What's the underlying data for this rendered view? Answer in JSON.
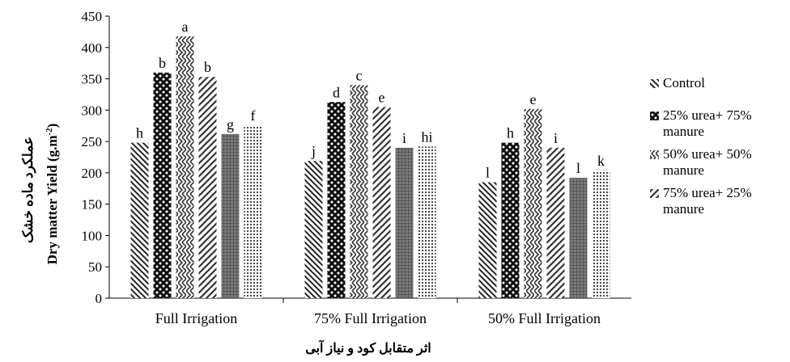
{
  "chart_data": {
    "type": "bar",
    "categories": [
      "Full Irrigation",
      "75% Full Irrigation",
      "50% Full Irrigation"
    ],
    "series": [
      {
        "name": "Control",
        "values": [
          248,
          219,
          185
        ],
        "pattern": "diag-down"
      },
      {
        "name": "",
        "values": [
          360,
          313,
          248
        ],
        "pattern": "weave-dark"
      },
      {
        "name": "",
        "values": [
          418,
          340,
          302
        ],
        "pattern": "zigzag"
      },
      {
        "name": "",
        "values": [
          353,
          305,
          240
        ],
        "pattern": "diag-up-wide"
      },
      {
        "name": "",
        "values": [
          262,
          240,
          192
        ],
        "pattern": "grid-dense"
      },
      {
        "name": "",
        "values": [
          276,
          242,
          204
        ],
        "pattern": "dots"
      }
    ],
    "significance_letters": [
      [
        "h",
        "b",
        "a",
        "b",
        "g",
        "f"
      ],
      [
        "j",
        "d",
        "c",
        "e",
        "i",
        "hi"
      ],
      [
        "l",
        "h",
        "e",
        "i",
        "l",
        "k"
      ]
    ],
    "ylim": [
      0,
      450
    ],
    "yticks": [
      0,
      50,
      100,
      150,
      200,
      250,
      300,
      350,
      400,
      450
    ],
    "ylabel_line1": "عملکرد ماده خشک",
    "ylabel_line2": "Dry matter Yield (g.m",
    "ylabel_sup": "-2",
    "ylabel_close": ")",
    "xlabel": "اثر متقابل کود و نیاز آبی",
    "legend_position": "right",
    "legend_entries": [
      {
        "lines": [
          "Control"
        ],
        "series": 0
      },
      {
        "lines": [
          "25% urea+ 75%",
          "manure"
        ],
        "series": 1
      },
      {
        "lines": [
          "50% urea+ 50%",
          "manure"
        ],
        "series": 2
      },
      {
        "lines": [
          "75% urea+ 25%",
          "manure"
        ],
        "series": 3
      }
    ],
    "grid": false
  }
}
